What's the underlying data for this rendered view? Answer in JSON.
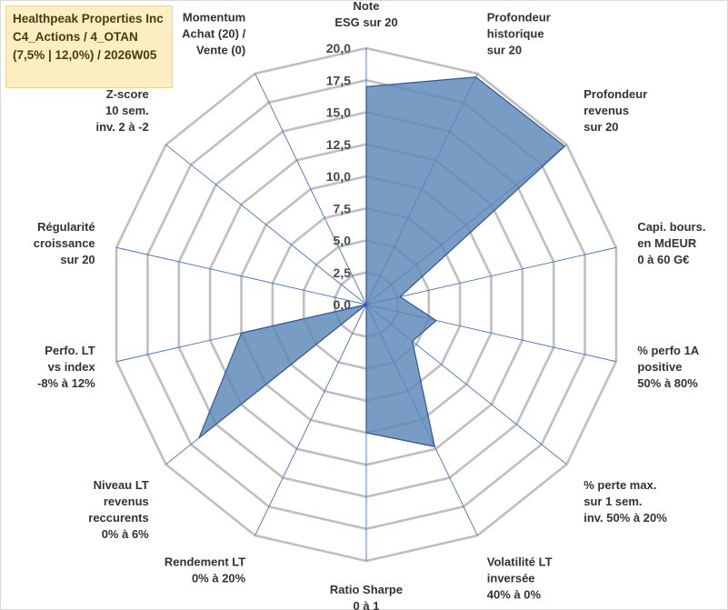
{
  "title_box": {
    "line1": "Healthpeak Properties Inc",
    "line2": "C4_Actions / 4_OTAN",
    "line3": "(7,5% | 12,0%) / 2026W05"
  },
  "colors": {
    "grid": "#bfbfbf",
    "spoke": "#4472c4",
    "fill": "#5b86b8",
    "stroke": "#2f5597"
  },
  "chart_data": {
    "type": "radar",
    "r_range": [
      0,
      20
    ],
    "tick_values": [
      0,
      2.5,
      5,
      7.5,
      10,
      12.5,
      15,
      17.5,
      20
    ],
    "tick_labels": [
      "0,0",
      "2,5",
      "5,0",
      "7,5",
      "10,0",
      "12,5",
      "15,0",
      "17,5",
      "20,0"
    ],
    "axes": [
      {
        "label": [
          "Note",
          "ESG sur 20"
        ],
        "value": 17.0
      },
      {
        "label": [
          "Profondeur",
          "historique",
          "sur 20"
        ],
        "value": 19.7
      },
      {
        "label": [
          "Profondeur",
          "revenus",
          "sur 20"
        ],
        "value": 19.8
      },
      {
        "label": [
          "Capi. bours.",
          "en MdEUR",
          "0 à 60 G€"
        ],
        "value": 2.7
      },
      {
        "label": [
          "% perfo 1A",
          "positive",
          "50% à 80%"
        ],
        "value": 5.6
      },
      {
        "label": [
          "% perte max.",
          "sur 1 sem.",
          "inv. 50% à 20%"
        ],
        "value": 4.6
      },
      {
        "label": [
          "Volatilité LT",
          "inversée",
          "40% à 0%"
        ],
        "value": 12.3
      },
      {
        "label": [
          "Ratio Sharpe",
          "0 à 1"
        ],
        "value": 10.0
      },
      {
        "label": [
          "Rendement LT",
          "0% à 20%"
        ],
        "value": 0.0
      },
      {
        "label": [
          "Niveau LT",
          "revenus",
          "reccurents",
          "0% à 6%"
        ],
        "value": 16.7
      },
      {
        "label": [
          "Perfo. LT",
          "vs index",
          "-8% à 12%"
        ],
        "value": 10.0
      },
      {
        "label": [
          "Régularité",
          "croissance",
          "sur 20"
        ],
        "value": 0.0
      },
      {
        "label": [
          "Z-score",
          "10 sem.",
          "inv. 2 à -2"
        ],
        "value": 0.0
      },
      {
        "label": [
          "Momentum",
          "Achat (20) /",
          "Vente (0)"
        ],
        "value": 0.0
      }
    ]
  }
}
